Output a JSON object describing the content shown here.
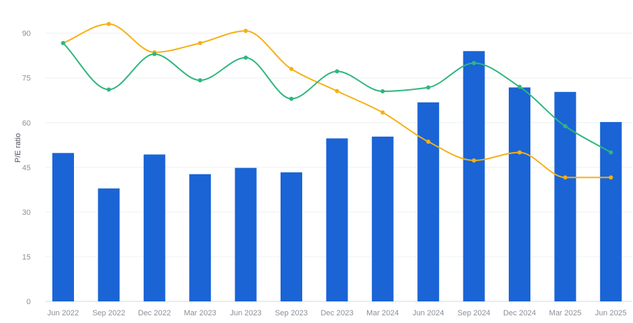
{
  "chart_data": {
    "type": "bar",
    "title": "",
    "xlabel": "",
    "ylabel": "P/E ratio",
    "ylim": [
      0,
      90
    ],
    "yticks": [
      0,
      15,
      30,
      45,
      60,
      75,
      90
    ],
    "grid": true,
    "legend": "none",
    "categories": [
      "Jun 2022",
      "Sep 2022",
      "Dec 2022",
      "Mar 2023",
      "Jun 2023",
      "Sep 2023",
      "Dec 2023",
      "Mar 2024",
      "Jun 2024",
      "Sep 2024",
      "Dec 2024",
      "Mar 2025",
      "Jun 2025"
    ],
    "series": [
      {
        "type": "bar",
        "color": "#1a64d6",
        "values": [
          49.8,
          37.9,
          49.3,
          42.7,
          44.8,
          43.3,
          54.7,
          55.3,
          66.8,
          84.0,
          71.8,
          70.3,
          60.2
        ]
      },
      {
        "type": "line",
        "color": "#f5b015",
        "values": [
          86.7,
          93.1,
          83.6,
          86.7,
          90.8,
          78.0,
          70.6,
          63.4,
          53.6,
          47.3,
          50.0,
          41.6,
          41.6
        ]
      },
      {
        "type": "line",
        "color": "#2fb67c",
        "values": [
          86.7,
          71.1,
          83.0,
          74.2,
          81.8,
          68.0,
          77.2,
          70.5,
          71.8,
          80.0,
          72.0,
          58.8,
          50.0
        ]
      }
    ]
  }
}
